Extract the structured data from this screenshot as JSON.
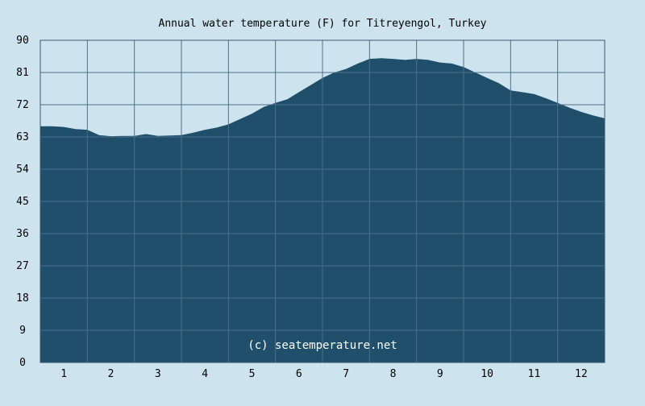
{
  "page": {
    "background": "#cde3ee"
  },
  "chart_data": {
    "type": "area",
    "title": "Annual water temperature (F) for Titreyengol, Turkey",
    "watermark": "(c) seatemperature.net",
    "xlabel": "",
    "ylabel": "",
    "xlim": [
      0.5,
      12.5
    ],
    "ylim": [
      0,
      90
    ],
    "x_ticks": [
      1,
      2,
      3,
      4,
      5,
      6,
      7,
      8,
      9,
      10,
      11,
      12
    ],
    "y_ticks": [
      0,
      9,
      18,
      27,
      36,
      45,
      54,
      63,
      72,
      81,
      90
    ],
    "grid": true,
    "legend": "none",
    "colors": {
      "fill": "#1f4f6b",
      "grid": "#4f6f88",
      "plot_border": "#3a5a72",
      "text": "#000000",
      "watermark": "#ffffff"
    },
    "series": [
      {
        "x": [
          0.5,
          0.75,
          1.0,
          1.25,
          1.5,
          1.75,
          2.0,
          2.25,
          2.5,
          2.75,
          3.0,
          3.25,
          3.5,
          3.75,
          4.0,
          4.25,
          4.5,
          4.75,
          5.0,
          5.25,
          5.5,
          5.75,
          6.0,
          6.25,
          6.5,
          6.75,
          7.0,
          7.25,
          7.5,
          7.75,
          8.0,
          8.25,
          8.5,
          8.75,
          9.0,
          9.25,
          9.5,
          9.75,
          10.0,
          10.25,
          10.5,
          10.75,
          11.0,
          11.25,
          11.5,
          11.75,
          12.0,
          12.25,
          12.5
        ],
        "values": [
          66.0,
          66.0,
          65.8,
          65.2,
          65.0,
          63.5,
          63.2,
          63.3,
          63.3,
          63.8,
          63.3,
          63.4,
          63.5,
          64.2,
          65.0,
          65.6,
          66.5,
          68.0,
          69.5,
          71.4,
          72.5,
          73.5,
          75.5,
          77.5,
          79.5,
          81.0,
          82.0,
          83.5,
          84.8,
          85.0,
          84.8,
          84.5,
          84.8,
          84.5,
          83.8,
          83.5,
          82.5,
          81.0,
          79.5,
          78.0,
          76.0,
          75.5,
          75.0,
          73.8,
          72.5,
          71.2,
          70.0,
          69.0,
          68.2
        ]
      }
    ]
  }
}
